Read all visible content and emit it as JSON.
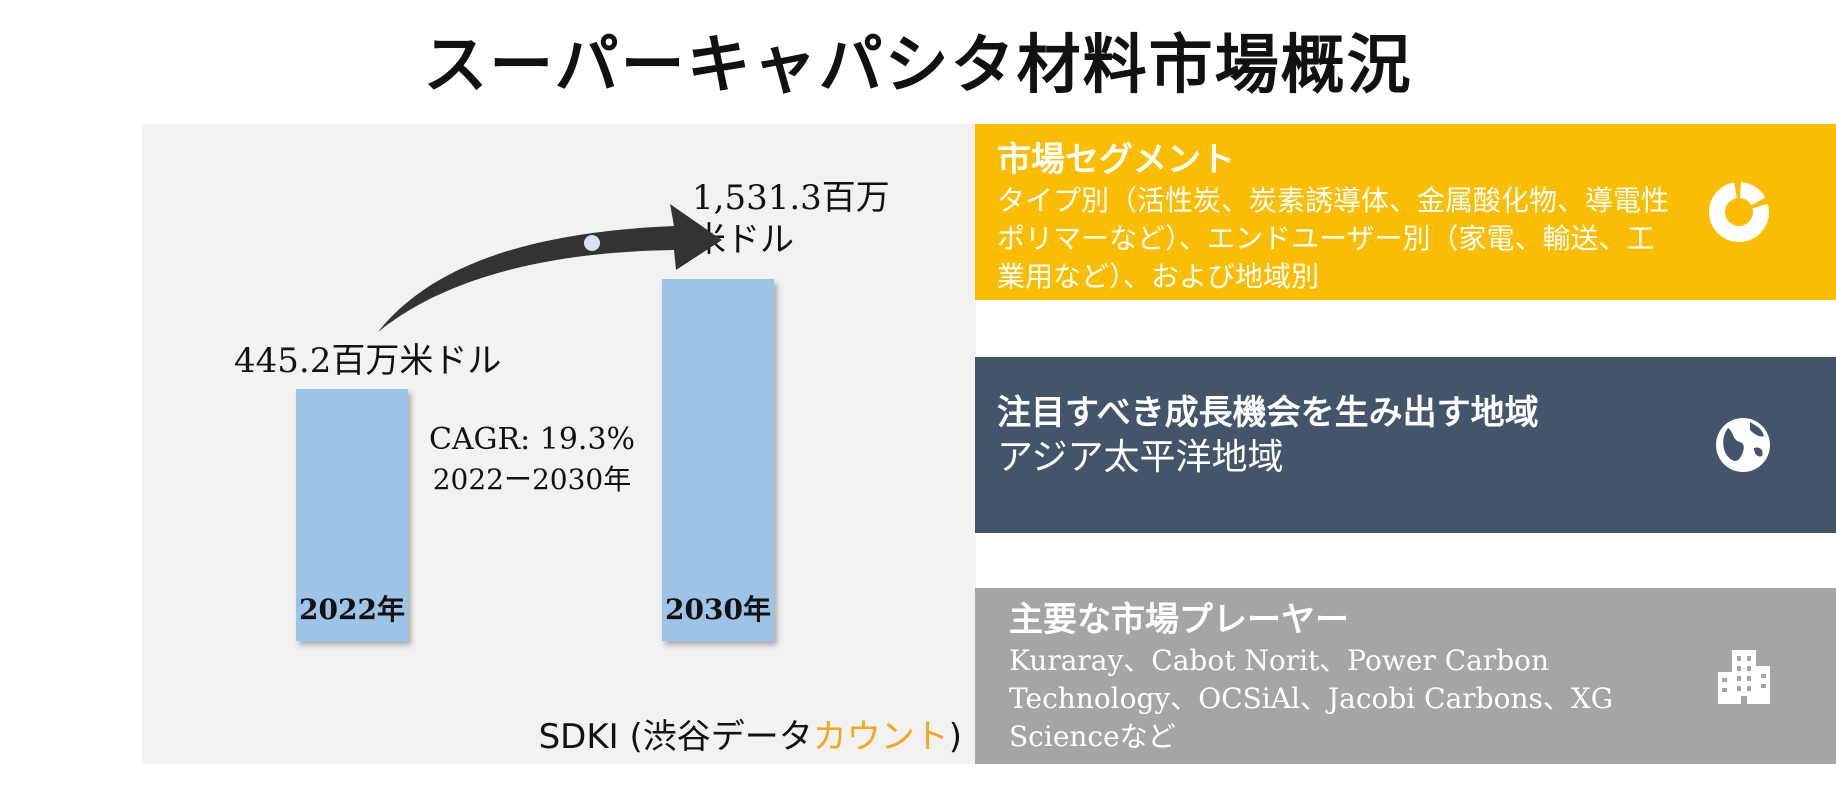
{
  "title": "スーパーキャパシタ材料市場概況",
  "chart_data": {
    "type": "bar",
    "categories": [
      "2022年",
      "2030年"
    ],
    "values": [
      445.2,
      1531.3
    ],
    "value_labels": [
      "445.2百万米ドル",
      "1,531.3百万米ドル"
    ],
    "cagr": "CAGR: 19.3%",
    "cagr_period": "2022ー2030年",
    "bar_color": "#9dc3e6"
  },
  "source": {
    "prefix": "SDKI (渋谷データ",
    "accent": "カウント",
    "suffix": ")"
  },
  "cards": [
    {
      "title": "市場セグメント",
      "body": "タイプ別（活性炭、炭素誘導体、金属酸化物、導電性ポリマーなど）、エンドユーザー別（家電、輸送、工業用など）、および地域別",
      "icon": "donut-chart-icon",
      "color": "#fbbd01"
    },
    {
      "title": "注目すべき成長機会を生み出す地域",
      "body": "アジア太平洋地域",
      "icon": "globe-icon",
      "color": "#44546a"
    },
    {
      "title": "主要な市場プレーヤー",
      "body": "Kuraray、Cabot Norit、Power Carbon Technology、OCSiAl、Jacobi Carbons、XG Scienceなど",
      "icon": "building-icon",
      "color": "#a5a5a5"
    }
  ]
}
